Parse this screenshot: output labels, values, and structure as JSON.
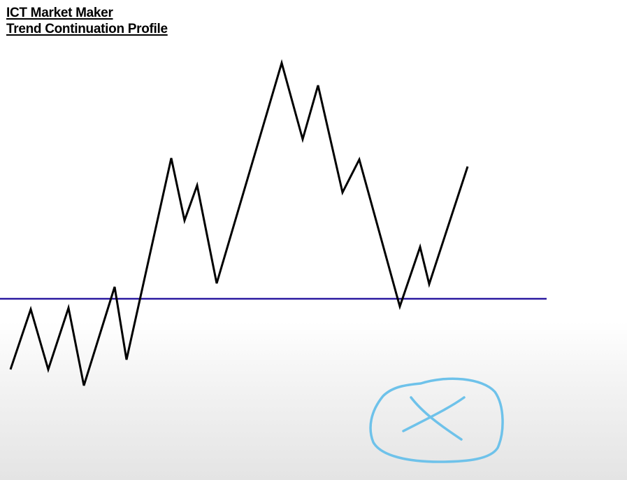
{
  "title": {
    "line1": "ICT Market Maker",
    "line2": "Trend Continuation Profile"
  },
  "colors": {
    "price_line": "#000000",
    "level_line": "#2b1aa0",
    "annotation": "#6ec2ea"
  },
  "annotation_icon": "circled-x-icon"
}
